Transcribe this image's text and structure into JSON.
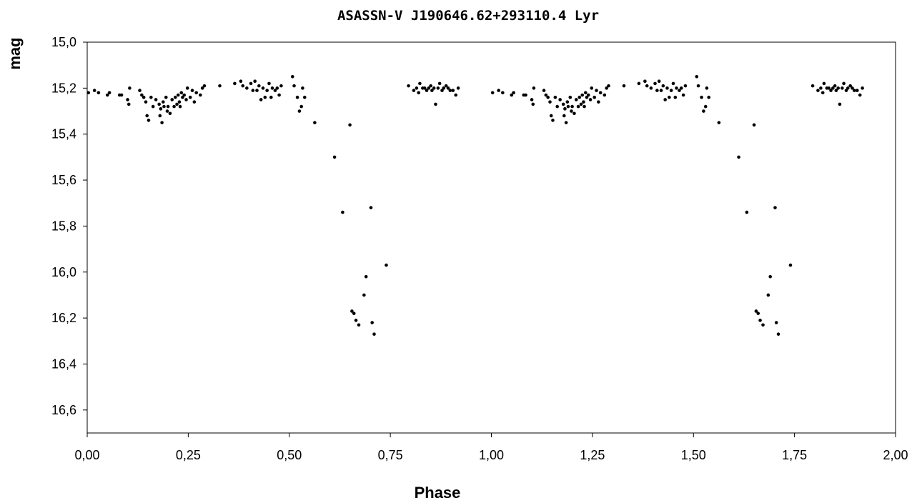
{
  "chart_data": {
    "type": "scatter",
    "title": "ASASSN-V J190646.62+293110.4 Lyr",
    "xlabel": "Phase",
    "ylabel": "mag",
    "xlim": [
      0.0,
      2.0
    ],
    "ylim": [
      15.0,
      16.7
    ],
    "y_inverted": true,
    "grid": false,
    "legend": "none",
    "marker_color": "#000000",
    "x_ticks": [
      "0,00",
      "0,25",
      "0,50",
      "0,75",
      "1,00",
      "1,25",
      "1,50",
      "1,75",
      "2,00"
    ],
    "x_tick_values": [
      0,
      0.25,
      0.5,
      0.75,
      1.0,
      1.25,
      1.5,
      1.75,
      2.0
    ],
    "y_ticks": [
      "15,0",
      "15,2",
      "15,4",
      "15,6",
      "15,8",
      "16,0",
      "16,2",
      "16,4",
      "16,6"
    ],
    "y_tick_values": [
      15.0,
      15.2,
      15.4,
      15.6,
      15.8,
      16.0,
      16.2,
      16.4,
      16.6
    ],
    "series": [
      {
        "points": [
          [
            0.003,
            15.22
          ],
          [
            0.018,
            15.21
          ],
          [
            0.028,
            15.22
          ],
          [
            0.05,
            15.23
          ],
          [
            0.055,
            15.22
          ],
          [
            0.08,
            15.23
          ],
          [
            0.085,
            15.23
          ],
          [
            0.1,
            15.25
          ],
          [
            0.103,
            15.27
          ],
          [
            0.105,
            15.2
          ],
          [
            0.13,
            15.21
          ],
          [
            0.135,
            15.23
          ],
          [
            0.14,
            15.24
          ],
          [
            0.145,
            15.26
          ],
          [
            0.148,
            15.32
          ],
          [
            0.152,
            15.34
          ],
          [
            0.158,
            15.24
          ],
          [
            0.163,
            15.28
          ],
          [
            0.17,
            15.25
          ],
          [
            0.178,
            15.27
          ],
          [
            0.18,
            15.32
          ],
          [
            0.182,
            15.29
          ],
          [
            0.185,
            15.35
          ],
          [
            0.188,
            15.26
          ],
          [
            0.19,
            15.28
          ],
          [
            0.195,
            15.24
          ],
          [
            0.198,
            15.3
          ],
          [
            0.2,
            15.28
          ],
          [
            0.205,
            15.31
          ],
          [
            0.21,
            15.25
          ],
          [
            0.215,
            15.28
          ],
          [
            0.218,
            15.24
          ],
          [
            0.222,
            15.27
          ],
          [
            0.225,
            15.23
          ],
          [
            0.228,
            15.26
          ],
          [
            0.23,
            15.28
          ],
          [
            0.233,
            15.22
          ],
          [
            0.236,
            15.24
          ],
          [
            0.24,
            15.23
          ],
          [
            0.245,
            15.25
          ],
          [
            0.248,
            15.2
          ],
          [
            0.255,
            15.24
          ],
          [
            0.26,
            15.21
          ],
          [
            0.265,
            15.26
          ],
          [
            0.27,
            15.22
          ],
          [
            0.28,
            15.23
          ],
          [
            0.285,
            15.2
          ],
          [
            0.29,
            15.19
          ],
          [
            0.328,
            15.19
          ],
          [
            0.365,
            15.18
          ],
          [
            0.38,
            15.17
          ],
          [
            0.385,
            15.19
          ],
          [
            0.395,
            15.2
          ],
          [
            0.405,
            15.18
          ],
          [
            0.41,
            15.21
          ],
          [
            0.415,
            15.17
          ],
          [
            0.42,
            15.21
          ],
          [
            0.425,
            15.19
          ],
          [
            0.43,
            15.25
          ],
          [
            0.435,
            15.2
          ],
          [
            0.44,
            15.24
          ],
          [
            0.445,
            15.21
          ],
          [
            0.45,
            15.18
          ],
          [
            0.455,
            15.24
          ],
          [
            0.458,
            15.2
          ],
          [
            0.465,
            15.21
          ],
          [
            0.47,
            15.2
          ],
          [
            0.475,
            15.23
          ],
          [
            0.48,
            15.19
          ],
          [
            0.508,
            15.15
          ],
          [
            0.512,
            15.19
          ],
          [
            0.52,
            15.24
          ],
          [
            0.525,
            15.3
          ],
          [
            0.53,
            15.28
          ],
          [
            0.533,
            15.2
          ],
          [
            0.538,
            15.24
          ],
          [
            0.563,
            15.35
          ],
          [
            0.612,
            15.5
          ],
          [
            0.632,
            15.74
          ],
          [
            0.65,
            15.36
          ],
          [
            0.655,
            16.17
          ],
          [
            0.66,
            16.18
          ],
          [
            0.665,
            16.21
          ],
          [
            0.672,
            16.23
          ],
          [
            0.685,
            16.1
          ],
          [
            0.69,
            16.02
          ],
          [
            0.702,
            15.72
          ],
          [
            0.705,
            16.22
          ],
          [
            0.71,
            16.27
          ],
          [
            0.74,
            15.97
          ],
          [
            0.795,
            15.19
          ],
          [
            0.808,
            15.21
          ],
          [
            0.815,
            15.2
          ],
          [
            0.82,
            15.22
          ],
          [
            0.823,
            15.18
          ],
          [
            0.83,
            15.2
          ],
          [
            0.835,
            15.2
          ],
          [
            0.84,
            15.21
          ],
          [
            0.845,
            15.2
          ],
          [
            0.85,
            15.19
          ],
          [
            0.853,
            15.21
          ],
          [
            0.858,
            15.2
          ],
          [
            0.862,
            15.27
          ],
          [
            0.868,
            15.2
          ],
          [
            0.872,
            15.18
          ],
          [
            0.878,
            15.21
          ],
          [
            0.882,
            15.2
          ],
          [
            0.888,
            15.19
          ],
          [
            0.893,
            15.2
          ],
          [
            0.898,
            15.21
          ],
          [
            0.905,
            15.21
          ],
          [
            0.912,
            15.23
          ],
          [
            0.918,
            15.2
          ],
          [
            1.003,
            15.22
          ],
          [
            1.018,
            15.21
          ],
          [
            1.028,
            15.22
          ],
          [
            1.05,
            15.23
          ],
          [
            1.055,
            15.22
          ],
          [
            1.08,
            15.23
          ],
          [
            1.085,
            15.23
          ],
          [
            1.1,
            15.25
          ],
          [
            1.103,
            15.27
          ],
          [
            1.105,
            15.2
          ],
          [
            1.13,
            15.21
          ],
          [
            1.135,
            15.23
          ],
          [
            1.14,
            15.24
          ],
          [
            1.145,
            15.26
          ],
          [
            1.148,
            15.32
          ],
          [
            1.152,
            15.34
          ],
          [
            1.158,
            15.24
          ],
          [
            1.163,
            15.28
          ],
          [
            1.17,
            15.25
          ],
          [
            1.178,
            15.27
          ],
          [
            1.18,
            15.32
          ],
          [
            1.182,
            15.29
          ],
          [
            1.185,
            15.35
          ],
          [
            1.188,
            15.26
          ],
          [
            1.19,
            15.28
          ],
          [
            1.195,
            15.24
          ],
          [
            1.198,
            15.3
          ],
          [
            1.2,
            15.28
          ],
          [
            1.205,
            15.31
          ],
          [
            1.21,
            15.25
          ],
          [
            1.215,
            15.28
          ],
          [
            1.218,
            15.24
          ],
          [
            1.222,
            15.27
          ],
          [
            1.225,
            15.23
          ],
          [
            1.228,
            15.26
          ],
          [
            1.23,
            15.28
          ],
          [
            1.233,
            15.22
          ],
          [
            1.236,
            15.24
          ],
          [
            1.24,
            15.23
          ],
          [
            1.245,
            15.25
          ],
          [
            1.248,
            15.2
          ],
          [
            1.255,
            15.24
          ],
          [
            1.26,
            15.21
          ],
          [
            1.265,
            15.26
          ],
          [
            1.27,
            15.22
          ],
          [
            1.28,
            15.23
          ],
          [
            1.285,
            15.2
          ],
          [
            1.29,
            15.19
          ],
          [
            1.328,
            15.19
          ],
          [
            1.365,
            15.18
          ],
          [
            1.38,
            15.17
          ],
          [
            1.385,
            15.19
          ],
          [
            1.395,
            15.2
          ],
          [
            1.405,
            15.18
          ],
          [
            1.41,
            15.21
          ],
          [
            1.415,
            15.17
          ],
          [
            1.42,
            15.21
          ],
          [
            1.425,
            15.19
          ],
          [
            1.43,
            15.25
          ],
          [
            1.435,
            15.2
          ],
          [
            1.44,
            15.24
          ],
          [
            1.445,
            15.21
          ],
          [
            1.45,
            15.18
          ],
          [
            1.455,
            15.24
          ],
          [
            1.458,
            15.2
          ],
          [
            1.465,
            15.21
          ],
          [
            1.47,
            15.2
          ],
          [
            1.475,
            15.23
          ],
          [
            1.48,
            15.19
          ],
          [
            1.508,
            15.15
          ],
          [
            1.512,
            15.19
          ],
          [
            1.52,
            15.24
          ],
          [
            1.525,
            15.3
          ],
          [
            1.53,
            15.28
          ],
          [
            1.533,
            15.2
          ],
          [
            1.538,
            15.24
          ],
          [
            1.563,
            15.35
          ],
          [
            1.612,
            15.5
          ],
          [
            1.632,
            15.74
          ],
          [
            1.65,
            15.36
          ],
          [
            1.655,
            16.17
          ],
          [
            1.66,
            16.18
          ],
          [
            1.665,
            16.21
          ],
          [
            1.672,
            16.23
          ],
          [
            1.685,
            16.1
          ],
          [
            1.69,
            16.02
          ],
          [
            1.702,
            15.72
          ],
          [
            1.705,
            16.22
          ],
          [
            1.71,
            16.27
          ],
          [
            1.74,
            15.97
          ],
          [
            1.795,
            15.19
          ],
          [
            1.808,
            15.21
          ],
          [
            1.815,
            15.2
          ],
          [
            1.82,
            15.22
          ],
          [
            1.823,
            15.18
          ],
          [
            1.83,
            15.2
          ],
          [
            1.835,
            15.2
          ],
          [
            1.84,
            15.21
          ],
          [
            1.845,
            15.2
          ],
          [
            1.85,
            15.19
          ],
          [
            1.853,
            15.21
          ],
          [
            1.858,
            15.2
          ],
          [
            1.862,
            15.27
          ],
          [
            1.868,
            15.2
          ],
          [
            1.872,
            15.18
          ],
          [
            1.878,
            15.21
          ],
          [
            1.882,
            15.2
          ],
          [
            1.888,
            15.19
          ],
          [
            1.893,
            15.2
          ],
          [
            1.898,
            15.21
          ],
          [
            1.905,
            15.21
          ],
          [
            1.912,
            15.23
          ],
          [
            1.918,
            15.2
          ]
        ]
      }
    ]
  }
}
